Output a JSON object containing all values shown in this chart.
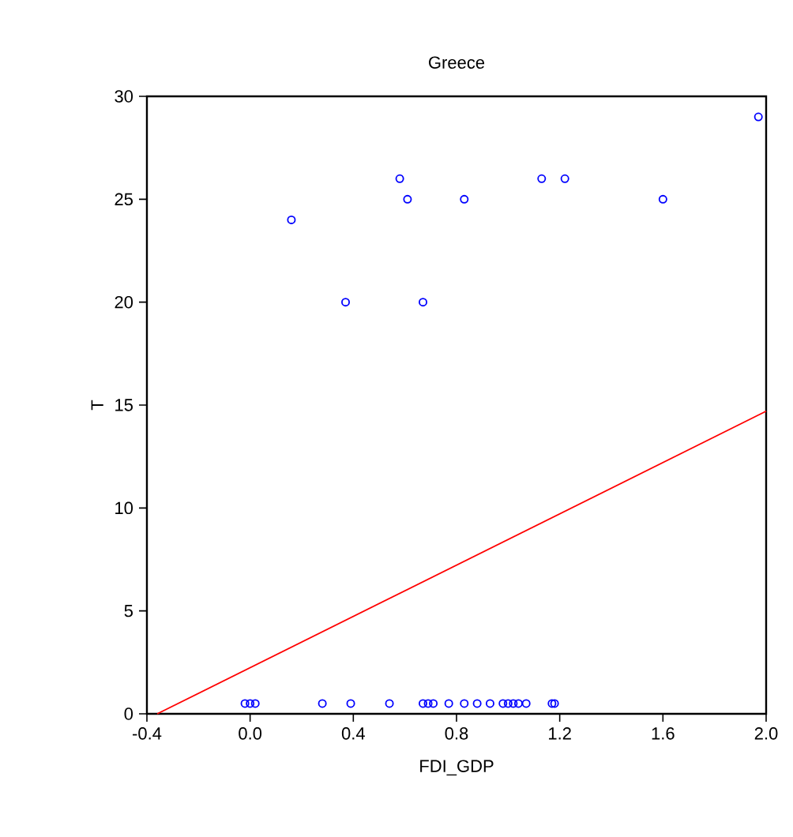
{
  "chart_data": {
    "type": "scatter",
    "title": "Greece",
    "xlabel": "FDI_GDP",
    "ylabel": "T",
    "xlim": [
      -0.4,
      2.0
    ],
    "xticks": [
      {
        "value": -0.4,
        "label": "-0.4"
      },
      {
        "value": 0,
        "label": "0.0"
      },
      {
        "value": 0.4,
        "label": "0.4"
      },
      {
        "value": 0.8,
        "label": "0.8"
      },
      {
        "value": 1.2,
        "label": "1.2"
      },
      {
        "value": 1.6,
        "label": "1.6"
      },
      {
        "value": 2.0,
        "label": "2.0"
      }
    ],
    "ylim": [
      0,
      30
    ],
    "yticks": [
      0,
      5,
      10,
      15,
      20,
      25,
      30
    ],
    "grid": false,
    "series": [
      {
        "color": "#0000ff",
        "marker": "circle",
        "x": [
          0.16,
          0.37,
          0.58,
          0.61,
          0.67,
          0.83,
          1.13,
          1.22,
          1.6,
          1.97,
          -0.02,
          0.0,
          0.02,
          0.28,
          0.39,
          0.54,
          0.67,
          0.69,
          0.71,
          0.77,
          0.83,
          0.88,
          0.93,
          0.98,
          1.0,
          1.02,
          1.04,
          1.07,
          1.17,
          1.18
        ],
        "values": [
          24,
          20,
          26,
          25,
          20,
          25,
          26,
          26,
          25,
          29,
          0.5,
          0.5,
          0.5,
          0.5,
          0.5,
          0.5,
          0.5,
          0.5,
          0.5,
          0.5,
          0.5,
          0.5,
          0.5,
          0.5,
          0.5,
          0.5,
          0.5,
          0.5,
          0.5,
          0.5
        ]
      },
      {
        "type": "line",
        "color": "#ff0000",
        "marker": "none",
        "x": [
          -0.36,
          2.0
        ],
        "values": [
          0,
          14.7
        ]
      }
    ]
  }
}
